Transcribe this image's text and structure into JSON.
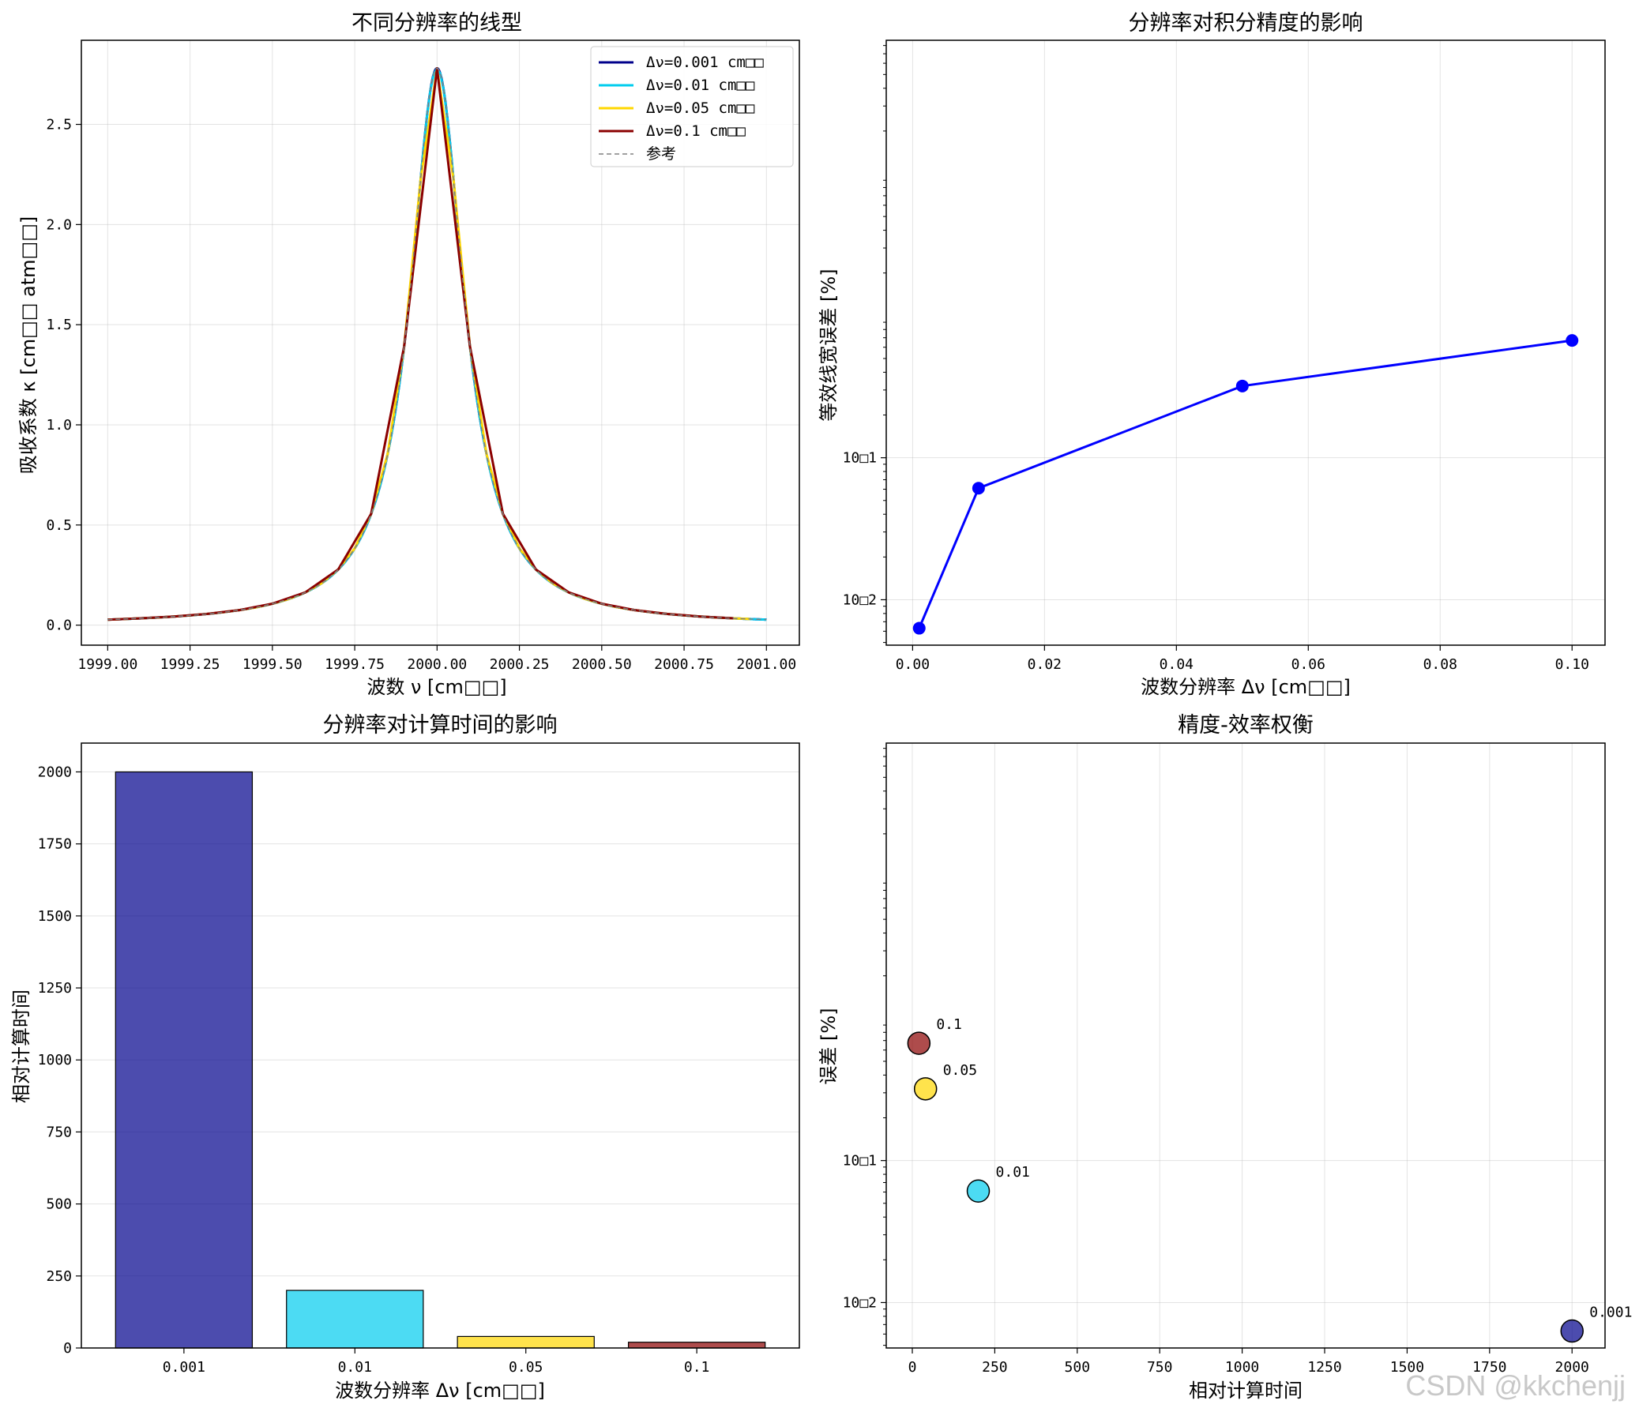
{
  "watermark": "CSDN @kkchenjj",
  "chart_data": [
    {
      "type": "line",
      "title": "不同分辨率的线型",
      "xlabel": "波数 ν [cm□□]",
      "ylabel": "吸收系数 κ [cm□□ atm□□]",
      "xlim": [
        1998.92,
        2001.1
      ],
      "ylim": [
        -0.1,
        2.92
      ],
      "xticks": [
        1999.0,
        1999.25,
        1999.5,
        1999.75,
        2000.0,
        2000.25,
        2000.5,
        2000.75,
        2001.0
      ],
      "xtick_labels": [
        "1999.00",
        "1999.25",
        "1999.50",
        "1999.75",
        "2000.00",
        "2000.25",
        "2000.50",
        "2000.75",
        "2001.00"
      ],
      "yticks": [
        0.0,
        0.5,
        1.0,
        1.5,
        2.0,
        2.5
      ],
      "ytick_labels": [
        "0.0",
        "0.5",
        "1.0",
        "1.5",
        "2.0",
        "2.5"
      ],
      "grid": true,
      "legend": "upper-right",
      "profile": {
        "center": 2000.0,
        "peak": 2.78,
        "hwhm": 0.1
      },
      "series": [
        {
          "name": "Δν=0.001 cm□□",
          "step": 0.001,
          "x_range": [
            1999.0,
            2001.0
          ],
          "color": "#00008b",
          "width": 3
        },
        {
          "name": "Δν=0.01 cm□□",
          "step": 0.01,
          "x_range": [
            1999.0,
            2001.0
          ],
          "color": "#00ccee",
          "width": 3
        },
        {
          "name": "Δν=0.05 cm□□",
          "step": 0.05,
          "x_range": [
            1999.0,
            2000.95
          ],
          "color": "#ffd700",
          "width": 3
        },
        {
          "name": "Δν=0.1 cm□□",
          "step": 0.1,
          "x_range": [
            1999.0,
            2000.9
          ],
          "color": "#8b0000",
          "width": 3
        },
        {
          "name": "参考",
          "step": 0.001,
          "x_range": [
            1999.0,
            2001.0
          ],
          "color": "#808080",
          "width": 1.5,
          "dash": "6,4"
        }
      ]
    },
    {
      "type": "line",
      "title": "分辨率对积分精度的影响",
      "xlabel": "波数分辨率 Δν [cm□□]",
      "ylabel": "等效线宽误差 [%]",
      "yscale": "log",
      "xlim": [
        -0.004,
        0.105
      ],
      "ylim_log10": [
        -2.32,
        1.94
      ],
      "xticks": [
        0.0,
        0.02,
        0.04,
        0.06,
        0.08,
        0.1
      ],
      "xtick_labels": [
        "0.00",
        "0.02",
        "0.04",
        "0.06",
        "0.08",
        "0.10"
      ],
      "yticks_log10": [
        -2,
        -1
      ],
      "ytick_labels": [
        "10□2",
        "10□1"
      ],
      "grid": true,
      "series": [
        {
          "x": [
            0.001,
            0.01,
            0.05,
            0.1
          ],
          "y": [
            0.0063,
            0.061,
            0.32,
            0.67
          ],
          "color": "#0000ff"
        }
      ]
    },
    {
      "type": "bar",
      "title": "分辨率对计算时间的影响",
      "xlabel": "波数分辨率 Δν [cm□□]",
      "ylabel": "相对计算时间",
      "categories": [
        "0.001",
        "0.01",
        "0.05",
        "0.1"
      ],
      "values": [
        2000,
        200,
        40,
        20
      ],
      "colors": [
        "#00008b",
        "#00ccee",
        "#ffd700",
        "#8b0000"
      ],
      "ylim": [
        0,
        2100
      ],
      "yticks": [
        0,
        250,
        500,
        750,
        1000,
        1250,
        1500,
        1750,
        2000
      ],
      "ytick_labels": [
        "0",
        "250",
        "500",
        "750",
        "1000",
        "1250",
        "1500",
        "1750",
        "2000"
      ],
      "grid": true
    },
    {
      "type": "scatter",
      "title": "精度-效率权衡",
      "xlabel": "相对计算时间",
      "ylabel": "误差 [%]",
      "yscale": "log",
      "xlim": [
        -79,
        2100
      ],
      "ylim_log10": [
        -2.32,
        1.94
      ],
      "xticks": [
        0,
        250,
        500,
        750,
        1000,
        1250,
        1500,
        1750,
        2000
      ],
      "xtick_labels": [
        "0",
        "250",
        "500",
        "750",
        "1000",
        "1250",
        "1500",
        "1750",
        "2000"
      ],
      "yticks_log10": [
        -2,
        -1
      ],
      "ytick_labels": [
        "10□2",
        "10□1"
      ],
      "grid": true,
      "points": [
        {
          "x": 2000,
          "y": 0.0063,
          "label": "0.001",
          "color": "#00008b"
        },
        {
          "x": 200,
          "y": 0.061,
          "label": "0.01",
          "color": "#00ccee"
        },
        {
          "x": 40,
          "y": 0.32,
          "label": "0.05",
          "color": "#ffd700"
        },
        {
          "x": 20,
          "y": 0.67,
          "label": "0.1",
          "color": "#8b0000"
        }
      ]
    }
  ]
}
